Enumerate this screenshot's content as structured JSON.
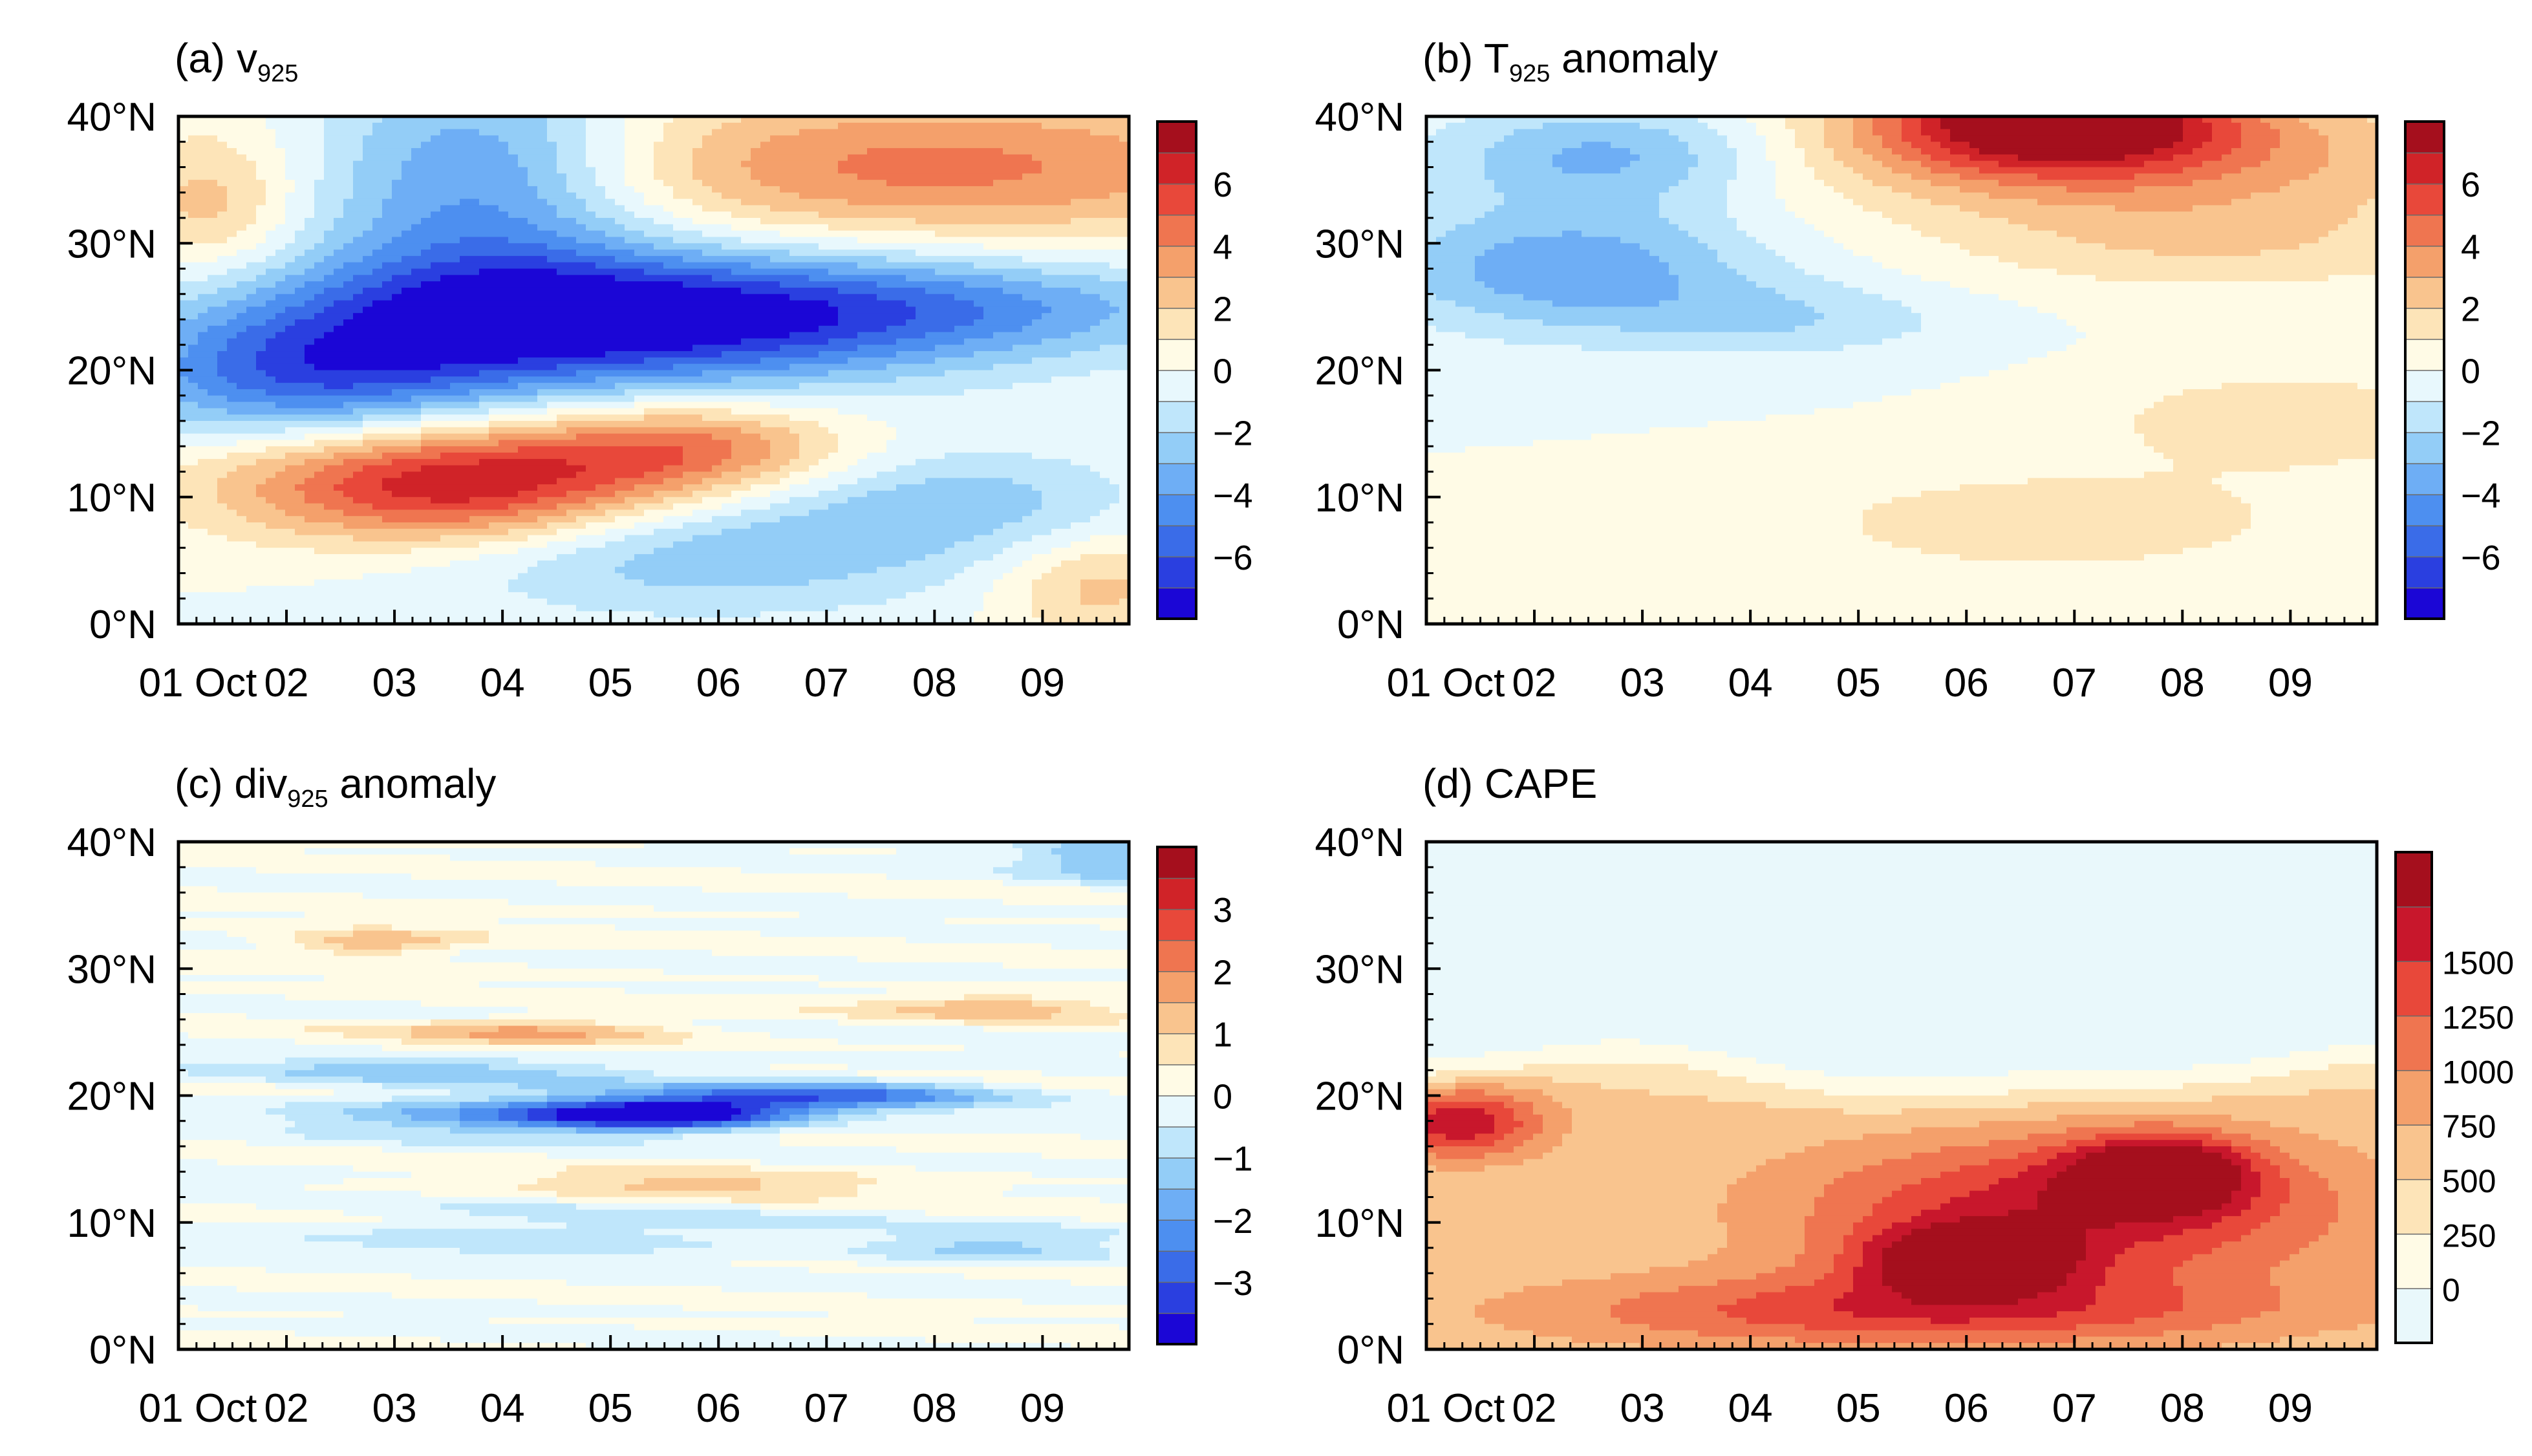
{
  "chart_data": [
    {
      "id": "a",
      "type": "heatmap",
      "title": "(a) v",
      "title_sub": "925",
      "title_suffix": "",
      "x_ticks": [
        "01 Oct",
        "02",
        "03",
        "04",
        "05",
        "06",
        "07",
        "08",
        "09"
      ],
      "x_range": [
        0,
        8.8
      ],
      "y_ticks": [
        "0°N",
        "10°N",
        "20°N",
        "30°N",
        "40°N"
      ],
      "y_range": [
        0,
        40
      ],
      "colorbar_labels": [
        "6",
        "4",
        "2",
        "0",
        "−2",
        "−4",
        "−6"
      ],
      "colorbar_range": [
        -7,
        7
      ],
      "features": [
        {
          "t": 3.8,
          "lat": 24,
          "amp": -7,
          "wt": 3.2,
          "wl": 5.5
        },
        {
          "t": 2.8,
          "lat": 35,
          "amp": -4,
          "wt": 1.5,
          "wl": 9
        },
        {
          "t": 1.2,
          "lat": 19,
          "amp": -4,
          "wt": 1.8,
          "wl": 5
        },
        {
          "t": 7.3,
          "lat": 25,
          "amp": -2.6,
          "wt": 2.8,
          "wl": 4
        },
        {
          "t": 2.6,
          "lat": 11,
          "amp": 6.5,
          "wt": 2.1,
          "wl": 4.8
        },
        {
          "t": 4.8,
          "lat": 14,
          "amp": 3.2,
          "wt": 1.4,
          "wl": 3.5
        },
        {
          "t": 7.0,
          "lat": 36,
          "amp": 3.8,
          "wt": 3.5,
          "wl": 6
        },
        {
          "t": 4.8,
          "lat": 6,
          "amp": -2.8,
          "wt": 2.6,
          "wl": 5
        },
        {
          "t": 7.3,
          "lat": 10,
          "amp": -1.8,
          "wt": 1.6,
          "wl": 4
        },
        {
          "t": 8.5,
          "lat": 3,
          "amp": 2.2,
          "wt": 0.9,
          "wl": 4
        },
        {
          "t": 0.3,
          "lat": 33,
          "amp": 2.2,
          "wt": 0.8,
          "wl": 6
        }
      ]
    },
    {
      "id": "b",
      "type": "heatmap",
      "title": "(b) T",
      "title_sub": "925",
      "title_suffix": " anomaly",
      "x_ticks": [
        "01 Oct",
        "02",
        "03",
        "04",
        "05",
        "06",
        "07",
        "08",
        "09"
      ],
      "x_range": [
        0,
        8.8
      ],
      "y_ticks": [
        "0°N",
        "10°N",
        "20°N",
        "30°N",
        "40°N"
      ],
      "y_range": [
        0,
        40
      ],
      "colorbar_labels": [
        "6",
        "4",
        "2",
        "0",
        "−2",
        "−4",
        "−6"
      ],
      "colorbar_range": [
        -7,
        7
      ],
      "features": [
        {
          "t": 5.8,
          "lat": 40,
          "amp": 6.5,
          "wt": 1.6,
          "wl": 4
        },
        {
          "t": 6.5,
          "lat": 37,
          "amp": 3.2,
          "wt": 3.2,
          "wl": 5
        },
        {
          "t": 7.3,
          "lat": 30,
          "amp": 1.6,
          "wt": 2.5,
          "wl": 4
        },
        {
          "t": 1.3,
          "lat": 28,
          "amp": -3.3,
          "wt": 1.8,
          "wl": 5
        },
        {
          "t": 1.7,
          "lat": 37,
          "amp": -3.0,
          "wt": 1.6,
          "wl": 4
        },
        {
          "t": 3.4,
          "lat": 24,
          "amp": -1.5,
          "wt": 1.6,
          "wl": 3
        },
        {
          "t": 5.8,
          "lat": 8,
          "amp": 1.6,
          "wt": 2.3,
          "wl": 4
        },
        {
          "t": 8.0,
          "lat": 16,
          "amp": 1.6,
          "wt": 1.8,
          "wl": 4
        }
      ]
    },
    {
      "id": "c",
      "type": "heatmap",
      "title": "(c) div",
      "title_sub": "925",
      "title_suffix": " anomaly",
      "x_ticks": [
        "01 Oct",
        "02",
        "03",
        "04",
        "05",
        "06",
        "07",
        "08",
        "09"
      ],
      "x_range": [
        0,
        8.8
      ],
      "y_ticks": [
        "0°N",
        "10°N",
        "20°N",
        "30°N",
        "40°N"
      ],
      "y_range": [
        0,
        40
      ],
      "colorbar_labels": [
        "3",
        "2",
        "1",
        "0",
        "−1",
        "−2",
        "−3"
      ],
      "colorbar_range": [
        -3.5,
        3.5
      ],
      "features": [
        {
          "t": 4.5,
          "lat": 18.5,
          "amp": -3.3,
          "wt": 1.2,
          "wl": 1.2
        },
        {
          "t": 6.0,
          "lat": 20,
          "amp": -2.2,
          "wt": 1.6,
          "wl": 1.2
        },
        {
          "t": 3.0,
          "lat": 18.5,
          "amp": -1.6,
          "wt": 1.8,
          "wl": 1.6
        },
        {
          "t": 2.5,
          "lat": 22,
          "amp": -1.0,
          "wt": 2.2,
          "wl": 1.2
        },
        {
          "t": 3.3,
          "lat": 25,
          "amp": 1.4,
          "wt": 1.4,
          "wl": 1.1
        },
        {
          "t": 1.8,
          "lat": 32,
          "amp": 1.4,
          "wt": 0.9,
          "wl": 1
        },
        {
          "t": 7.6,
          "lat": 27,
          "amp": 1.2,
          "wt": 1.2,
          "wl": 1
        },
        {
          "t": 4.8,
          "lat": 13,
          "amp": 1.0,
          "wt": 1.8,
          "wl": 1.2
        },
        {
          "t": 8.6,
          "lat": 39,
          "amp": -1.3,
          "wt": 0.8,
          "wl": 2
        },
        {
          "t": 7.5,
          "lat": 8,
          "amp": -1.0,
          "wt": 1.2,
          "wl": 1.5
        },
        {
          "t": 3.5,
          "lat": 9,
          "amp": -0.8,
          "wt": 2.2,
          "wl": 2
        }
      ]
    },
    {
      "id": "d",
      "type": "heatmap",
      "title": "(d) CAPE",
      "title_sub": "",
      "title_suffix": "",
      "x_ticks": [
        "01 Oct",
        "02",
        "03",
        "04",
        "05",
        "06",
        "07",
        "08",
        "09"
      ],
      "x_range": [
        0,
        8.8
      ],
      "y_ticks": [
        "0°N",
        "10°N",
        "20°N",
        "30°N",
        "40°N"
      ],
      "y_range": [
        0,
        40
      ],
      "colorbar_labels": [
        "1500",
        "1250",
        "1000",
        "750",
        "500",
        "250",
        "0"
      ],
      "colorbar_range": [
        -125,
        1750
      ],
      "features": [
        {
          "t": 5.0,
          "lat": 7,
          "amp": 1450,
          "wt": 0.9,
          "wl": 2.5
        },
        {
          "t": 6.8,
          "lat": 14,
          "amp": 1400,
          "wt": 0.8,
          "wl": 2.8
        },
        {
          "t": 6.0,
          "lat": 11,
          "amp": 1150,
          "wt": 2.6,
          "wl": 6
        },
        {
          "t": 0.3,
          "lat": 18,
          "amp": 1200,
          "wt": 0.8,
          "wl": 3
        },
        {
          "t": 4.5,
          "lat": 3,
          "amp": 900,
          "wt": 3.5,
          "wl": 3
        }
      ]
    }
  ]
}
